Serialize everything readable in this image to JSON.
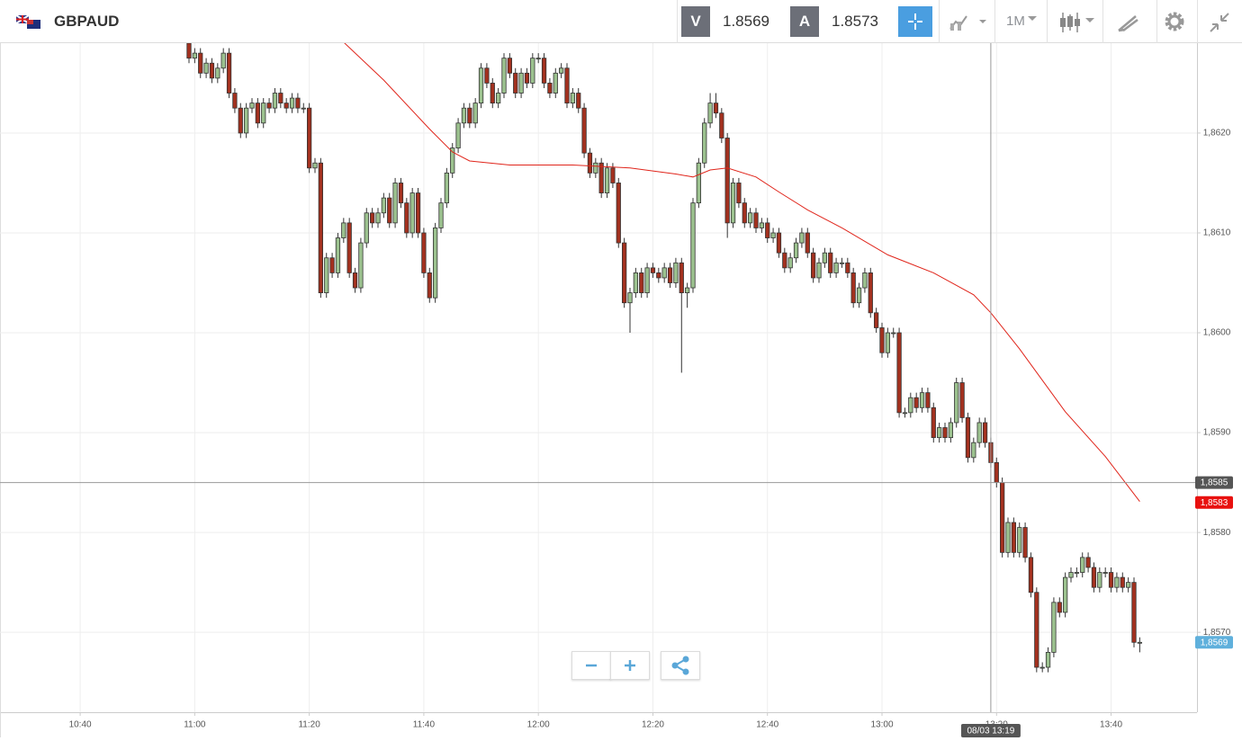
{
  "header": {
    "symbol": "GBPAUD",
    "bid_label": "V",
    "bid": 1.8569,
    "ask_label": "A",
    "ask": 1.8573,
    "timeframe": "1M"
  },
  "chart_data": {
    "type": "candlestick",
    "up_color": "#9cc28f",
    "down_color": "#a3311f",
    "grid": true,
    "ylim": [
      1.8562,
      1.8629
    ],
    "xlim": [
      "10:26",
      "13:55"
    ],
    "yticks": [
      {
        "value": 1.857,
        "label": "1,8570"
      },
      {
        "value": 1.858,
        "label": "1,8580"
      },
      {
        "value": 1.859,
        "label": "1,8590"
      },
      {
        "value": 1.86,
        "label": "1,8600"
      },
      {
        "value": 1.861,
        "label": "1,8610"
      },
      {
        "value": 1.862,
        "label": "1,8620"
      }
    ],
    "xticks": [
      "10:40",
      "11:00",
      "11:20",
      "11:40",
      "12:00",
      "12:20",
      "12:40",
      "13:00",
      "13:20",
      "13:40"
    ],
    "x": [
      "10:59",
      "11:00",
      "11:01",
      "11:02",
      "11:03",
      "11:04",
      "11:05",
      "11:06",
      "11:07",
      "11:08",
      "11:09",
      "11:10",
      "11:11",
      "11:12",
      "11:13",
      "11:14",
      "11:15",
      "11:16",
      "11:17",
      "11:18",
      "11:19",
      "11:20",
      "11:21",
      "11:22",
      "11:23",
      "11:24",
      "11:25",
      "11:26",
      "11:27",
      "11:28",
      "11:29",
      "11:30",
      "11:31",
      "11:32",
      "11:33",
      "11:34",
      "11:35",
      "11:36",
      "11:37",
      "11:38",
      "11:39",
      "11:40",
      "11:41",
      "11:42",
      "11:43",
      "11:44",
      "11:45",
      "11:46",
      "11:47",
      "11:48",
      "11:49",
      "11:50",
      "11:51",
      "11:52",
      "11:53",
      "11:54",
      "11:55",
      "11:56",
      "11:57",
      "11:58",
      "11:59",
      "12:00",
      "12:01",
      "12:02",
      "12:03",
      "12:04",
      "12:05",
      "12:06",
      "12:07",
      "12:08",
      "12:09",
      "12:10",
      "12:11",
      "12:12",
      "12:13",
      "12:14",
      "12:15",
      "12:16",
      "12:17",
      "12:18",
      "12:19",
      "12:20",
      "12:21",
      "12:22",
      "12:23",
      "12:24",
      "12:25",
      "12:26",
      "12:27",
      "12:28",
      "12:29",
      "12:30",
      "12:31",
      "12:32",
      "12:33",
      "12:34",
      "12:35",
      "12:36",
      "12:37",
      "12:38",
      "12:39",
      "12:40",
      "12:41",
      "12:42",
      "12:43",
      "12:44",
      "12:45",
      "12:46",
      "12:47",
      "12:48",
      "12:49",
      "12:50",
      "12:51",
      "12:52",
      "12:53",
      "12:54",
      "12:55",
      "12:56",
      "12:57",
      "12:58",
      "12:59",
      "13:00",
      "13:01",
      "13:02",
      "13:03",
      "13:04",
      "13:05",
      "13:06",
      "13:07",
      "13:08",
      "13:09",
      "13:10",
      "13:11",
      "13:12",
      "13:13",
      "13:14",
      "13:15",
      "13:16",
      "13:17",
      "13:18",
      "13:19",
      "13:20",
      "13:21",
      "13:22",
      "13:23",
      "13:24",
      "13:25",
      "13:26",
      "13:27",
      "13:28",
      "13:29",
      "13:30",
      "13:31",
      "13:32",
      "13:33",
      "13:34",
      "13:35",
      "13:36",
      "13:37",
      "13:38",
      "13:39",
      "13:40",
      "13:41",
      "13:42",
      "13:43",
      "13:44",
      "13:45"
    ],
    "open": [
      1.8629,
      1.86275,
      1.8628,
      1.8626,
      1.8627,
      1.86255,
      1.86265,
      1.8628,
      1.8624,
      1.86225,
      1.862,
      1.86225,
      1.8623,
      1.8621,
      1.8623,
      1.86225,
      1.8624,
      1.8623,
      1.86225,
      1.86235,
      1.86225,
      1.86225,
      1.86165,
      1.8617,
      1.8604,
      1.86075,
      1.8606,
      1.86095,
      1.8611,
      1.8606,
      1.86045,
      1.8609,
      1.8612,
      1.8611,
      1.8612,
      1.86135,
      1.8611,
      1.8615,
      1.8613,
      1.861,
      1.8614,
      1.861,
      1.8606,
      1.86035,
      1.86105,
      1.8613,
      1.8616,
      1.86185,
      1.8621,
      1.86225,
      1.8621,
      1.8623,
      1.86265,
      1.8625,
      1.8623,
      1.8624,
      1.86275,
      1.8626,
      1.8624,
      1.8626,
      1.8625,
      1.86275,
      1.86275,
      1.8625,
      1.8624,
      1.8626,
      1.86265,
      1.8623,
      1.8624,
      1.86225,
      1.8618,
      1.8616,
      1.8617,
      1.8614,
      1.86165,
      1.8615,
      1.8609,
      1.8603,
      1.8604,
      1.8606,
      1.8604,
      1.86065,
      1.8606,
      1.86055,
      1.86065,
      1.8605,
      1.8607,
      1.8604,
      1.86045,
      1.8613,
      1.8617,
      1.8621,
      1.8623,
      1.8622,
      1.86195,
      1.8611,
      1.8615,
      1.8613,
      1.8611,
      1.8612,
      1.86105,
      1.8611,
      1.86095,
      1.861,
      1.8608,
      1.86065,
      1.86075,
      1.8609,
      1.861,
      1.8608,
      1.86055,
      1.8607,
      1.8608,
      1.8606,
      1.8607,
      1.8607,
      1.8606,
      1.8603,
      1.86045,
      1.8606,
      1.8602,
      1.86005,
      1.8598,
      1.86,
      1.86,
      1.8592,
      1.8592,
      1.85935,
      1.85925,
      1.8594,
      1.85925,
      1.85895,
      1.85905,
      1.85895,
      1.8591,
      1.8595,
      1.85915,
      1.85875,
      1.8589,
      1.8591,
      1.8589,
      1.8587,
      1.8585,
      1.8578,
      1.8581,
      1.8578,
      1.85805,
      1.85775,
      1.8574,
      1.85665,
      1.85665,
      1.8568,
      1.8573,
      1.8572,
      1.85755,
      1.8576,
      1.8576,
      1.85775,
      1.85765,
      1.85745,
      1.8576,
      1.8576,
      1.85745,
      1.85755,
      1.85745,
      1.8575,
      1.8569
    ],
    "high": [
      1.86295,
      1.86285,
      1.86285,
      1.86275,
      1.86275,
      1.8627,
      1.86285,
      1.86285,
      1.86245,
      1.8623,
      1.8623,
      1.86235,
      1.86235,
      1.86235,
      1.86235,
      1.86245,
      1.86245,
      1.86235,
      1.8624,
      1.8624,
      1.8623,
      1.8623,
      1.86175,
      1.86175,
      1.8608,
      1.8608,
      1.861,
      1.86115,
      1.86115,
      1.86065,
      1.86095,
      1.86125,
      1.86125,
      1.86125,
      1.8614,
      1.8614,
      1.86155,
      1.86155,
      1.86135,
      1.86145,
      1.86145,
      1.86105,
      1.86065,
      1.8611,
      1.86135,
      1.86165,
      1.8619,
      1.86215,
      1.8623,
      1.8623,
      1.86235,
      1.8627,
      1.8627,
      1.86255,
      1.86245,
      1.8628,
      1.8628,
      1.86265,
      1.86265,
      1.86265,
      1.8628,
      1.8628,
      1.8628,
      1.86255,
      1.86265,
      1.8627,
      1.8627,
      1.86245,
      1.86245,
      1.8623,
      1.86185,
      1.86175,
      1.86175,
      1.8617,
      1.8617,
      1.86155,
      1.86095,
      1.86045,
      1.86065,
      1.86065,
      1.8607,
      1.8607,
      1.86065,
      1.8607,
      1.8607,
      1.86075,
      1.86075,
      1.8605,
      1.86135,
      1.86175,
      1.86215,
      1.8624,
      1.8624,
      1.86225,
      1.862,
      1.86155,
      1.86155,
      1.86135,
      1.86125,
      1.86125,
      1.86115,
      1.86115,
      1.86105,
      1.86105,
      1.86085,
      1.8608,
      1.86095,
      1.86105,
      1.86105,
      1.86085,
      1.86075,
      1.86085,
      1.86085,
      1.86075,
      1.86075,
      1.86075,
      1.86065,
      1.8605,
      1.86065,
      1.86065,
      1.86025,
      1.8601,
      1.86005,
      1.86005,
      1.86005,
      1.85925,
      1.8594,
      1.8594,
      1.85945,
      1.85945,
      1.8593,
      1.8591,
      1.8591,
      1.85915,
      1.85955,
      1.85955,
      1.8592,
      1.85895,
      1.85915,
      1.85915,
      1.85895,
      1.85875,
      1.85855,
      1.85815,
      1.85815,
      1.8581,
      1.8581,
      1.8578,
      1.85745,
      1.8567,
      1.85685,
      1.85735,
      1.85735,
      1.8576,
      1.85765,
      1.85765,
      1.8578,
      1.8578,
      1.8577,
      1.85765,
      1.85765,
      1.85765,
      1.8576,
      1.8576,
      1.85755,
      1.85755,
      1.85695
    ],
    "low": [
      1.8627,
      1.8627,
      1.86255,
      1.86255,
      1.8625,
      1.8625,
      1.8626,
      1.86235,
      1.8622,
      1.86195,
      1.86195,
      1.8622,
      1.86205,
      1.86205,
      1.8622,
      1.8622,
      1.86225,
      1.8622,
      1.8622,
      1.8622,
      1.8622,
      1.8616,
      1.8616,
      1.86035,
      1.86035,
      1.86055,
      1.86055,
      1.8609,
      1.86055,
      1.8604,
      1.8604,
      1.86085,
      1.86105,
      1.86105,
      1.86115,
      1.86105,
      1.86105,
      1.86125,
      1.86095,
      1.86095,
      1.86095,
      1.86055,
      1.8603,
      1.8603,
      1.861,
      1.86125,
      1.86155,
      1.8618,
      1.86205,
      1.86205,
      1.86205,
      1.86225,
      1.86245,
      1.86225,
      1.86225,
      1.86235,
      1.86255,
      1.86235,
      1.86235,
      1.86245,
      1.86245,
      1.8627,
      1.86245,
      1.86235,
      1.86235,
      1.86255,
      1.86225,
      1.86225,
      1.8622,
      1.86175,
      1.86155,
      1.86155,
      1.86135,
      1.86135,
      1.86145,
      1.86085,
      1.86025,
      1.86,
      1.86035,
      1.86035,
      1.86035,
      1.86055,
      1.8605,
      1.8605,
      1.86045,
      1.86045,
      1.8596,
      1.86025,
      1.8604,
      1.86125,
      1.86165,
      1.86205,
      1.86215,
      1.8619,
      1.86095,
      1.86105,
      1.86125,
      1.86105,
      1.86105,
      1.861,
      1.861,
      1.8609,
      1.8609,
      1.86075,
      1.8606,
      1.8606,
      1.8607,
      1.86085,
      1.86075,
      1.8605,
      1.8605,
      1.86065,
      1.86055,
      1.86055,
      1.86065,
      1.86055,
      1.86025,
      1.86025,
      1.8604,
      1.86015,
      1.86,
      1.85975,
      1.85975,
      1.85995,
      1.85915,
      1.85915,
      1.85915,
      1.8592,
      1.8592,
      1.8592,
      1.8589,
      1.8589,
      1.8589,
      1.8589,
      1.85905,
      1.8591,
      1.8587,
      1.8587,
      1.85885,
      1.85885,
      1.85865,
      1.85845,
      1.85775,
      1.85775,
      1.85775,
      1.85775,
      1.8577,
      1.85735,
      1.8566,
      1.8566,
      1.8566,
      1.85675,
      1.85715,
      1.85715,
      1.8575,
      1.85755,
      1.85755,
      1.8576,
      1.8574,
      1.8574,
      1.85755,
      1.8574,
      1.8574,
      1.8574,
      1.8574,
      1.85685,
      1.8568
    ],
    "close": [
      1.86275,
      1.8628,
      1.8626,
      1.8627,
      1.86255,
      1.86265,
      1.8628,
      1.8624,
      1.86225,
      1.862,
      1.86225,
      1.8623,
      1.8621,
      1.8623,
      1.86225,
      1.8624,
      1.8623,
      1.86225,
      1.86235,
      1.86225,
      1.86225,
      1.86165,
      1.8617,
      1.8604,
      1.86075,
      1.8606,
      1.86095,
      1.8611,
      1.8606,
      1.86045,
      1.8609,
      1.8612,
      1.8611,
      1.8612,
      1.86135,
      1.8611,
      1.8615,
      1.8613,
      1.861,
      1.8614,
      1.861,
      1.8606,
      1.86035,
      1.86105,
      1.8613,
      1.8616,
      1.86185,
      1.8621,
      1.86225,
      1.8621,
      1.8623,
      1.86265,
      1.8625,
      1.8623,
      1.8624,
      1.86275,
      1.8626,
      1.8624,
      1.8626,
      1.8625,
      1.86275,
      1.86275,
      1.8625,
      1.8624,
      1.8626,
      1.86265,
      1.8623,
      1.8624,
      1.86225,
      1.8618,
      1.8616,
      1.8617,
      1.8614,
      1.86165,
      1.8615,
      1.8609,
      1.8603,
      1.8604,
      1.8606,
      1.8604,
      1.86065,
      1.8606,
      1.86055,
      1.86065,
      1.8605,
      1.8607,
      1.8604,
      1.86045,
      1.8613,
      1.8617,
      1.8621,
      1.8623,
      1.8622,
      1.86195,
      1.8611,
      1.8615,
      1.8613,
      1.8611,
      1.8612,
      1.86105,
      1.8611,
      1.86095,
      1.861,
      1.8608,
      1.86065,
      1.86075,
      1.8609,
      1.861,
      1.8608,
      1.86055,
      1.8607,
      1.8608,
      1.8606,
      1.8607,
      1.8607,
      1.8606,
      1.8603,
      1.86045,
      1.8606,
      1.8602,
      1.86005,
      1.8598,
      1.86,
      1.86,
      1.8592,
      1.8592,
      1.85935,
      1.85925,
      1.8594,
      1.85925,
      1.85895,
      1.85905,
      1.85895,
      1.8591,
      1.8595,
      1.85915,
      1.85875,
      1.8589,
      1.8591,
      1.8589,
      1.8587,
      1.8585,
      1.8578,
      1.8581,
      1.8578,
      1.85805,
      1.85775,
      1.8574,
      1.85665,
      1.85665,
      1.8568,
      1.8573,
      1.8572,
      1.85755,
      1.8576,
      1.8576,
      1.85775,
      1.85765,
      1.85745,
      1.8576,
      1.8576,
      1.85745,
      1.85755,
      1.85745,
      1.8575,
      1.8569,
      1.8569
    ],
    "ma": {
      "color": "#e0251b",
      "x": [
        "11:26",
        "11:33",
        "11:41",
        "11:45",
        "11:48",
        "11:55",
        "12:06",
        "12:16",
        "12:24",
        "12:27",
        "12:30",
        "12:33",
        "12:38",
        "12:42",
        "12:47",
        "12:53",
        "13:01",
        "13:09",
        "13:16",
        "13:19",
        "13:24",
        "13:32",
        "13:39",
        "13:45"
      ],
      "values": [
        1.86291,
        1.86253,
        1.86204,
        1.86181,
        1.86172,
        1.86168,
        1.86168,
        1.86165,
        1.86159,
        1.86156,
        1.86163,
        1.86165,
        1.86156,
        1.86141,
        1.86123,
        1.86105,
        1.86078,
        1.8606,
        1.86038,
        1.8602,
        1.85984,
        1.85921,
        1.85876,
        1.85831
      ]
    },
    "crosshair": {
      "time_label": "08/03 13:19",
      "price": {
        "value": 1.8585,
        "label": "1,8585"
      }
    },
    "price_tags": [
      {
        "value": 1.8583,
        "label": "1,8583",
        "color": "#e8110f"
      },
      {
        "value": 1.8569,
        "label": "1,8569",
        "color": "#5fb0dc"
      }
    ]
  }
}
